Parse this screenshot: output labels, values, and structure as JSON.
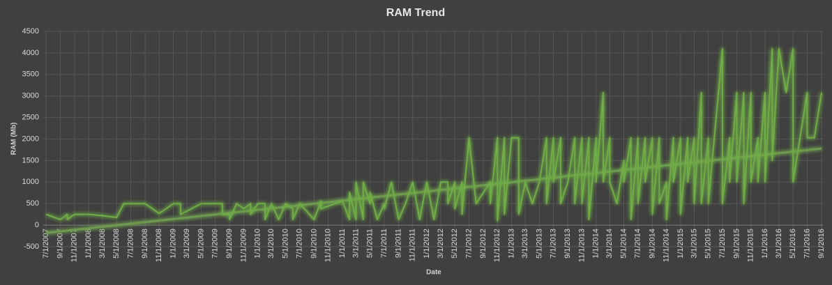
{
  "chart_data": {
    "type": "line",
    "title": "RAM Trend",
    "x_label": "Date",
    "y_label": "RAM (Mb)",
    "color": "#70ad47",
    "grid": true,
    "ylim": [
      -500,
      4500
    ],
    "yticks": [
      -500,
      0,
      500,
      1000,
      1500,
      2000,
      2500,
      3000,
      3500,
      4000,
      4500
    ],
    "xlim": [
      "7/1/2007",
      "9/1/2016"
    ],
    "xticks": [
      "7/1/2007",
      "9/1/2007",
      "11/1/2007",
      "1/1/2008",
      "3/1/2008",
      "5/1/2008",
      "7/1/2008",
      "9/1/2008",
      "11/1/2008",
      "1/1/2009",
      "3/1/2009",
      "5/1/2009",
      "7/1/2009",
      "9/1/2009",
      "11/1/2009",
      "1/1/2010",
      "3/1/2010",
      "5/1/2010",
      "7/1/2010",
      "9/1/2010",
      "11/1/2010",
      "1/1/2011",
      "3/1/2011",
      "5/1/2011",
      "7/1/2011",
      "9/1/2011",
      "11/1/2011",
      "1/1/2012",
      "3/1/2012",
      "5/1/2012",
      "7/1/2012",
      "9/1/2012",
      "11/1/2012",
      "1/1/2013",
      "3/1/2013",
      "5/1/2013",
      "7/1/2013",
      "9/1/2013",
      "11/1/2013",
      "1/1/2014",
      "3/1/2014",
      "5/1/2014",
      "7/1/2014",
      "9/1/2014",
      "11/1/2014",
      "1/1/2015",
      "3/1/2015",
      "5/1/2015",
      "7/1/2015",
      "9/1/2015",
      "11/1/2015",
      "1/1/2016",
      "3/1/2016",
      "5/1/2016",
      "7/1/2016",
      "9/1/2016"
    ],
    "x": [
      "7/1/2007",
      "9/1/2007",
      "10/1/2007",
      "10/1/2007",
      "11/1/2007",
      "1/1/2008",
      "3/1/2008",
      "5/1/2008",
      "6/1/2008",
      "9/1/2008",
      "11/1/2008",
      "1/1/2009",
      "2/1/2009",
      "2/1/2009",
      "5/1/2009",
      "8/1/2009",
      "8/1/2009",
      "9/1/2009",
      "9/1/2009",
      "10/1/2009",
      "11/1/2009",
      "12/1/2009",
      "12/1/2009",
      "1/1/2010",
      "2/1/2010",
      "2/1/2010",
      "3/1/2010",
      "4/1/2010",
      "5/1/2010",
      "6/1/2010",
      "6/1/2010",
      "7/1/2010",
      "9/1/2010",
      "10/1/2010",
      "10/1/2010",
      "12/1/2010",
      "1/1/2011",
      "2/1/2011",
      "2/1/2011",
      "3/1/2011",
      "3/1/2011",
      "4/1/2011",
      "4/1/2011",
      "5/1/2011",
      "5/1/2011",
      "6/1/2011",
      "7/1/2011",
      "7/1/2011",
      "8/1/2011",
      "9/1/2011",
      "10/1/2011",
      "11/1/2011",
      "12/1/2011",
      "1/1/2012",
      "2/1/2012",
      "3/1/2012",
      "4/1/2012",
      "4/1/2012",
      "5/1/2012",
      "5/1/2012",
      "6/1/2012",
      "6/1/2012",
      "7/1/2012",
      "8/1/2012",
      "10/1/2012",
      "10/1/2012",
      "11/1/2012",
      "11/1/2012",
      "12/1/2012",
      "12/1/2012",
      "1/1/2013",
      "2/1/2013",
      "2/1/2013",
      "3/1/2013",
      "4/1/2013",
      "5/1/2013",
      "6/1/2013",
      "6/1/2013",
      "7/1/2013",
      "7/1/2013",
      "8/1/2013",
      "8/1/2013",
      "9/1/2013",
      "10/1/2013",
      "10/1/2013",
      "11/1/2013",
      "11/1/2013",
      "12/1/2013",
      "12/1/2013",
      "1/1/2014",
      "1/1/2014",
      "2/1/2014",
      "2/1/2014",
      "3/1/2014",
      "3/1/2014",
      "4/1/2014",
      "5/1/2014",
      "5/1/2014",
      "6/1/2014",
      "6/1/2014",
      "7/1/2014",
      "7/1/2014",
      "8/1/2014",
      "8/1/2014",
      "9/1/2014",
      "9/1/2014",
      "10/1/2014",
      "10/1/2014",
      "11/1/2014",
      "11/1/2014",
      "12/1/2014",
      "12/1/2014",
      "1/1/2015",
      "1/1/2015",
      "2/1/2015",
      "2/1/2015",
      "3/1/2015",
      "3/1/2015",
      "4/1/2015",
      "4/1/2015",
      "5/1/2015",
      "5/1/2015",
      "7/1/2015",
      "7/1/2015",
      "8/1/2015",
      "8/1/2015",
      "9/1/2015",
      "9/1/2015",
      "10/1/2015",
      "10/1/2015",
      "11/1/2015",
      "11/1/2015",
      "12/1/2015",
      "12/1/2015",
      "1/1/2016",
      "1/1/2016",
      "2/1/2016",
      "2/1/2016",
      "3/1/2016",
      "4/1/2016",
      "5/1/2016",
      "5/1/2016",
      "7/1/2016",
      "7/1/2016",
      "8/1/2016",
      "9/1/2016"
    ],
    "values": [
      250,
      130,
      250,
      130,
      250,
      250,
      220,
      180,
      500,
      500,
      270,
      500,
      500,
      250,
      500,
      500,
      250,
      250,
      130,
      500,
      380,
      500,
      250,
      500,
      500,
      130,
      500,
      130,
      500,
      380,
      130,
      500,
      130,
      560,
      380,
      500,
      560,
      130,
      760,
      130,
      1000,
      130,
      1000,
      500,
      760,
      130,
      500,
      380,
      1000,
      130,
      500,
      1000,
      130,
      1000,
      130,
      1000,
      1000,
      500,
      1000,
      380,
      1000,
      250,
      2030,
      500,
      1000,
      500,
      2030,
      100,
      2030,
      250,
      2030,
      2030,
      250,
      1000,
      500,
      1000,
      2030,
      500,
      2030,
      1000,
      2030,
      500,
      1000,
      2030,
      500,
      2030,
      500,
      2030,
      130,
      2030,
      1000,
      3080,
      1000,
      2030,
      1000,
      500,
      1500,
      1000,
      2030,
      130,
      2030,
      500,
      2030,
      1000,
      2030,
      250,
      2030,
      500,
      1000,
      130,
      2030,
      1000,
      2030,
      250,
      2030,
      1000,
      2030,
      500,
      3080,
      500,
      2030,
      500,
      4100,
      500,
      2030,
      1000,
      3080,
      1000,
      3080,
      500,
      3080,
      1000,
      2030,
      1000,
      3080,
      1000,
      4100,
      1500,
      4100,
      3080,
      4100,
      1000,
      3080,
      2030,
      2030,
      3080
    ],
    "trendline": {
      "color": "#6e9a4f",
      "x": [
        "7/1/2007",
        "9/1/2016"
      ],
      "values": [
        -180,
        1780
      ]
    }
  }
}
